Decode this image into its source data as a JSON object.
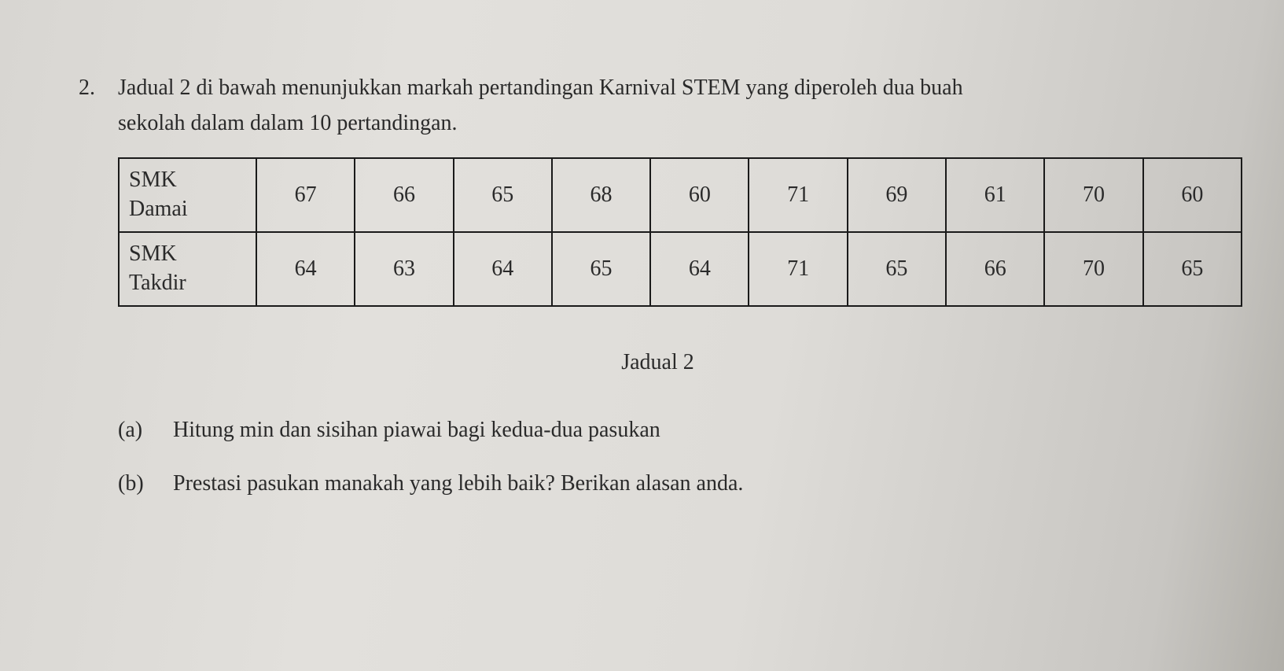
{
  "question": {
    "number": "2.",
    "text_line1": "Jadual 2 di bawah menunjukkan markah pertandingan Karnival STEM yang diperoleh dua buah",
    "text_line2": "sekolah dalam dalam 10 pertandingan."
  },
  "table": {
    "caption": "Jadual 2",
    "rows": [
      {
        "header": "SMK Damai",
        "values": [
          "67",
          "66",
          "65",
          "68",
          "60",
          "71",
          "69",
          "61",
          "70",
          "60"
        ]
      },
      {
        "header": "SMK Takdir",
        "values": [
          "64",
          "63",
          "64",
          "65",
          "64",
          "71",
          "65",
          "66",
          "70",
          "65"
        ]
      }
    ],
    "border_color": "#1a1a1a",
    "font_size_pt": 21
  },
  "subquestions": [
    {
      "label": "(a)",
      "text": "Hitung min dan sisihan piawai bagi kedua-dua pasukan"
    },
    {
      "label": "(b)",
      "text": "Prestasi pasukan manakah yang lebih baik? Berikan alasan anda."
    }
  ],
  "styling": {
    "background_gradient": [
      "#d8d6d2",
      "#e2e0dc",
      "#dedcd8",
      "#c8c6c2",
      "#b0aea8"
    ],
    "text_color": "#2a2a2a",
    "font_family": "Times New Roman"
  }
}
